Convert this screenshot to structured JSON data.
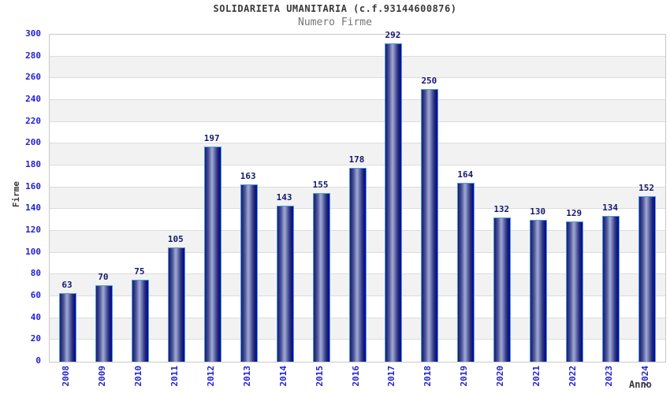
{
  "chart_data": {
    "type": "bar",
    "title": "SOLIDARIETA UMANITARIA (c.f.93144600876)",
    "subtitle": "Numero Firme",
    "xlabel": "Anno",
    "ylabel": "Firme",
    "categories": [
      "2008",
      "2009",
      "2010",
      "2011",
      "2012",
      "2013",
      "2014",
      "2015",
      "2016",
      "2017",
      "2018",
      "2019",
      "2020",
      "2021",
      "2022",
      "2023",
      "2024"
    ],
    "values": [
      63,
      70,
      75,
      105,
      197,
      163,
      143,
      155,
      178,
      292,
      250,
      164,
      132,
      130,
      129,
      134,
      152
    ],
    "ylim": [
      0,
      300
    ],
    "ytick_step": 20,
    "grid": true,
    "legend": false,
    "band_fill": "alternating horizontal stripes every 20 units"
  },
  "colors": {
    "title": "#3a3a3a",
    "subtitle": "#757575",
    "axis_tick_label": "#2222cd",
    "bar_value_label": "#17176e",
    "axis_title": "#3a3a3a",
    "band_gray": "#f2f2f2",
    "gridline": "#dcdcdc",
    "plot_border": "#c8c8c8",
    "bar_border": "#4d9ae2",
    "bar_dark": "#1b2069",
    "bar_mid": "#9aa2cd",
    "bar_right_edge": "#0404ae"
  }
}
